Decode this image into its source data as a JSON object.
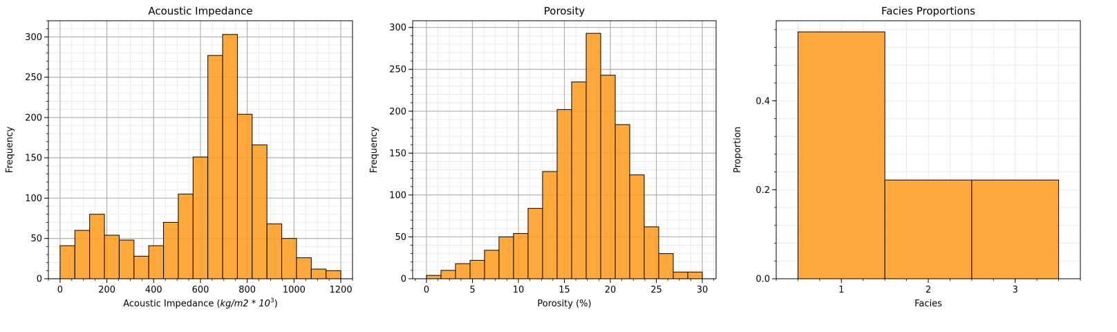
{
  "chart_data": [
    {
      "type": "bar",
      "title": "Acoustic Impedance",
      "xlabel_main": "Acoustic Impedance (",
      "xlabel_math": "kg/m2 * 10",
      "xlabel_sup": "3",
      "xlabel_end": ")",
      "ylabel": "Frequency",
      "xlim": [
        -50,
        1250
      ],
      "ylim": [
        0,
        320
      ],
      "xticks": [
        0,
        200,
        400,
        600,
        800,
        1000,
        1200
      ],
      "yticks": [
        0,
        50,
        100,
        150,
        200,
        250,
        300
      ],
      "bin_edges": [
        0,
        63.16,
        126.32,
        189.47,
        252.63,
        315.79,
        378.95,
        442.11,
        505.26,
        568.42,
        631.58,
        694.74,
        757.89,
        821.05,
        884.21,
        947.37,
        1010.53,
        1073.68,
        1136.84,
        1200
      ],
      "values": [
        41,
        60,
        80,
        54,
        48,
        28,
        41,
        70,
        105,
        151,
        277,
        303,
        204,
        166,
        68,
        50,
        26,
        12,
        10
      ],
      "grid": true,
      "minor_grid": true,
      "bar_color": "#ffa028",
      "edge_color": "#000000"
    },
    {
      "type": "bar",
      "title": "Porosity",
      "xlabel": "Porosity (%)",
      "ylabel": "Frequency",
      "xlim": [
        -1.5,
        31.5
      ],
      "ylim": [
        0,
        308
      ],
      "xticks": [
        0,
        5,
        10,
        15,
        20,
        25,
        30
      ],
      "yticks": [
        0,
        50,
        100,
        150,
        200,
        250,
        300
      ],
      "bin_edges": [
        0,
        1.58,
        3.16,
        4.74,
        6.32,
        7.89,
        9.47,
        11.05,
        12.63,
        14.21,
        15.79,
        17.37,
        18.95,
        20.53,
        22.11,
        23.68,
        25.26,
        26.84,
        28.42,
        30
      ],
      "values": [
        4,
        10,
        18,
        22,
        34,
        50,
        54,
        84,
        128,
        202,
        235,
        293,
        243,
        184,
        124,
        62,
        30,
        8,
        8
      ],
      "grid": true,
      "minor_grid": true,
      "bar_color": "#ffa028",
      "edge_color": "#000000"
    },
    {
      "type": "bar",
      "title": "Facies Proportions",
      "xlabel": "Facies",
      "ylabel": "Proportion",
      "xlim": [
        0.25,
        3.75
      ],
      "ylim": [
        0,
        0.58
      ],
      "xticks": [
        1,
        2,
        3
      ],
      "yticks": [
        0.0,
        0.2,
        0.4
      ],
      "ytick_labels": [
        "0.0",
        "0.2",
        "0.4"
      ],
      "bin_edges": [
        0.5,
        1.5,
        2.5,
        3.5
      ],
      "values": [
        0.555,
        0.222,
        0.222
      ],
      "grid": false,
      "minor_grid": true,
      "bar_color": "#ffa028",
      "edge_color": "#000000"
    }
  ]
}
